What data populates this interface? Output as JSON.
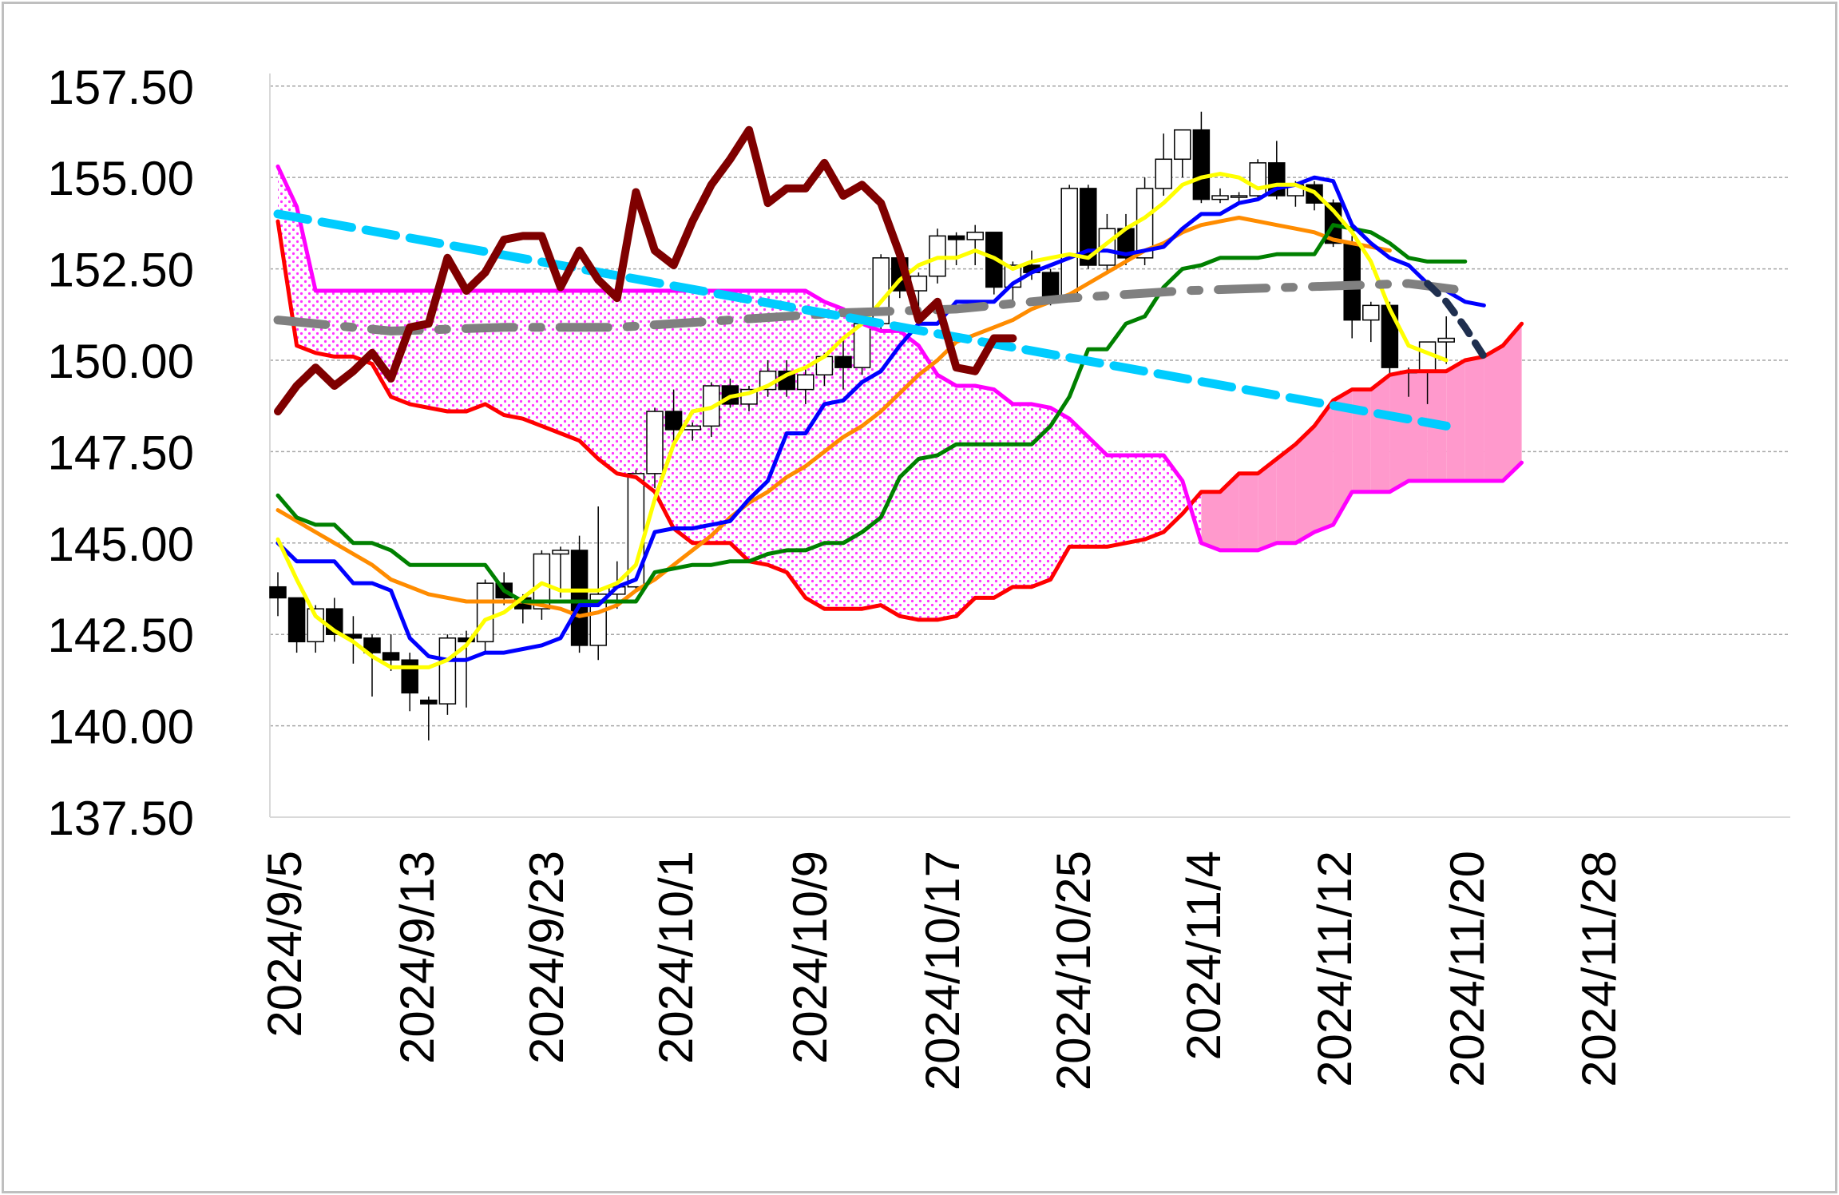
{
  "chart_data": {
    "type": "candlestick-ichimoku",
    "y_ticks": [
      "157.50",
      "155.00",
      "152.50",
      "150.00",
      "147.50",
      "145.00",
      "142.50",
      "140.00",
      "137.50"
    ],
    "x_tick_labels": [
      "2024/9/5",
      "2024/9/13",
      "2024/9/23",
      "2024/10/1",
      "2024/10/9",
      "2024/10/17",
      "2024/10/25",
      "2024/11/4",
      "2024/11/12",
      "2024/11/20",
      "2024/11/28"
    ],
    "ylim": [
      137.5,
      158.5
    ],
    "grid": "horizontal-dashed",
    "colors": {
      "kumo_fill_upper": "#ff33ff",
      "kumo_fill_solid": "#ff99cc",
      "senkou_a": "#ff0000",
      "senkou_b": "#ff00ff",
      "chikou": "#7f0000",
      "tenkan": "#0000ff",
      "kijun": "#008000",
      "ma_fast": "#ffff00",
      "ma_slow": "#ff8c00",
      "trend_dashed_1": "#00ccff",
      "trend_dashed_2": "#808080",
      "trend_dashed_3": "#1f2f4f"
    },
    "candles": [
      [
        143.8,
        144.2,
        143.0,
        143.5
      ],
      [
        143.5,
        143.5,
        142.0,
        142.3
      ],
      [
        142.3,
        143.3,
        142.0,
        143.2
      ],
      [
        143.2,
        143.5,
        142.3,
        142.5
      ],
      [
        142.5,
        143.0,
        141.7,
        142.4
      ],
      [
        142.4,
        142.5,
        140.8,
        142.0
      ],
      [
        142.0,
        142.5,
        141.5,
        141.8
      ],
      [
        141.8,
        142.0,
        140.4,
        140.9
      ],
      [
        140.7,
        140.8,
        139.6,
        140.6
      ],
      [
        140.6,
        142.5,
        140.3,
        142.4
      ],
      [
        142.4,
        142.6,
        140.5,
        142.3
      ],
      [
        142.3,
        144.0,
        142.0,
        143.9
      ],
      [
        143.9,
        144.2,
        143.3,
        143.5
      ],
      [
        143.5,
        143.6,
        142.8,
        143.2
      ],
      [
        143.2,
        144.8,
        142.9,
        144.7
      ],
      [
        144.7,
        144.9,
        143.5,
        144.8
      ],
      [
        144.8,
        145.2,
        142.0,
        142.2
      ],
      [
        142.2,
        146.0,
        141.8,
        143.6
      ],
      [
        143.6,
        144.5,
        143.2,
        143.8
      ],
      [
        143.8,
        147.0,
        143.7,
        146.9
      ],
      [
        146.9,
        148.7,
        146.5,
        148.6
      ],
      [
        148.6,
        149.2,
        147.8,
        148.1
      ],
      [
        148.1,
        148.3,
        147.8,
        148.2
      ],
      [
        148.2,
        149.4,
        147.9,
        149.3
      ],
      [
        149.3,
        149.5,
        148.7,
        148.8
      ],
      [
        148.8,
        149.3,
        148.6,
        149.2
      ],
      [
        149.2,
        150.0,
        149.0,
        149.7
      ],
      [
        149.7,
        150.0,
        149.0,
        149.2
      ],
      [
        149.2,
        149.8,
        148.8,
        149.6
      ],
      [
        149.6,
        150.2,
        149.3,
        150.1
      ],
      [
        150.1,
        150.6,
        149.2,
        149.8
      ],
      [
        149.8,
        151.2,
        149.6,
        151.0
      ],
      [
        151.0,
        152.9,
        150.8,
        152.8
      ],
      [
        152.8,
        153.1,
        151.7,
        151.9
      ],
      [
        151.9,
        152.4,
        151.3,
        152.3
      ],
      [
        152.3,
        153.6,
        152.1,
        153.4
      ],
      [
        153.4,
        153.5,
        152.6,
        153.3
      ],
      [
        153.3,
        153.7,
        152.6,
        153.5
      ],
      [
        153.5,
        153.5,
        151.8,
        152.0
      ],
      [
        152.0,
        152.7,
        151.6,
        152.6
      ],
      [
        152.6,
        153.0,
        152.2,
        152.4
      ],
      [
        152.4,
        152.5,
        151.5,
        151.7
      ],
      [
        151.7,
        154.8,
        151.6,
        154.7
      ],
      [
        154.7,
        154.8,
        152.5,
        152.6
      ],
      [
        152.6,
        154.0,
        152.4,
        153.6
      ],
      [
        153.6,
        154.0,
        152.6,
        152.8
      ],
      [
        152.8,
        155.0,
        152.6,
        154.7
      ],
      [
        154.7,
        156.2,
        154.5,
        155.5
      ],
      [
        155.5,
        156.3,
        155.0,
        156.3
      ],
      [
        156.3,
        156.8,
        154.3,
        154.4
      ],
      [
        154.4,
        154.7,
        154.3,
        154.5
      ],
      [
        154.5,
        154.6,
        154.3,
        154.5
      ],
      [
        154.5,
        155.5,
        154.4,
        155.4
      ],
      [
        155.4,
        156.0,
        154.4,
        154.5
      ],
      [
        154.5,
        154.9,
        154.2,
        154.8
      ],
      [
        154.8,
        154.9,
        154.1,
        154.3
      ],
      [
        154.3,
        154.4,
        153.1,
        153.2
      ],
      [
        153.2,
        153.4,
        150.6,
        151.1
      ],
      [
        151.1,
        151.6,
        150.5,
        151.5
      ],
      [
        151.5,
        151.6,
        149.6,
        149.8
      ],
      [
        149.7,
        149.8,
        149.0,
        149.7
      ],
      [
        149.7,
        150.3,
        148.8,
        150.5
      ],
      [
        150.5,
        151.2,
        149.9,
        150.6
      ]
    ],
    "series": [
      {
        "key": "senkou_a",
        "values": [
          153.8,
          150.4,
          150.2,
          150.1,
          150.1,
          149.9,
          149.0,
          148.8,
          148.7,
          148.6,
          148.6,
          148.8,
          148.5,
          148.4,
          148.2,
          148.0,
          147.8,
          147.3,
          146.9,
          146.8,
          146.4,
          145.4,
          145.0,
          145.0,
          145.0,
          144.5,
          144.4,
          144.2,
          143.5,
          143.2,
          143.2,
          143.2,
          143.3,
          143.0,
          142.9,
          142.9,
          143.0,
          143.5,
          143.5,
          143.8,
          143.8,
          144.0,
          144.9,
          144.9,
          144.9,
          145.0,
          145.1,
          145.3,
          145.8,
          146.4,
          146.4,
          146.9,
          146.9,
          147.3,
          147.7,
          148.2,
          148.9,
          149.2,
          149.2,
          149.6,
          149.7,
          149.7,
          149.7,
          150.0,
          150.1,
          150.4,
          151.0
        ]
      },
      {
        "key": "senkou_b",
        "values": [
          155.3,
          154.2,
          151.9,
          151.9,
          151.9,
          151.9,
          151.9,
          151.9,
          151.9,
          151.9,
          151.9,
          151.9,
          151.9,
          151.9,
          151.9,
          151.9,
          151.9,
          151.9,
          151.9,
          151.9,
          151.9,
          151.9,
          151.9,
          151.9,
          151.9,
          151.9,
          151.9,
          151.9,
          151.9,
          151.6,
          151.4,
          151.0,
          150.8,
          150.8,
          150.4,
          149.6,
          149.3,
          149.3,
          149.2,
          148.8,
          148.8,
          148.7,
          148.4,
          147.9,
          147.4,
          147.4,
          147.4,
          147.4,
          146.7,
          145.0,
          144.8,
          144.8,
          144.8,
          145.0,
          145.0,
          145.3,
          145.5,
          146.4,
          146.4,
          146.4,
          146.7,
          146.7,
          146.7,
          146.7,
          146.7,
          146.7,
          147.2
        ]
      },
      {
        "key": "chikou",
        "values": [
          148.6,
          149.3,
          149.8,
          149.3,
          149.7,
          150.2,
          149.5,
          150.9,
          151.0,
          152.8,
          151.9,
          152.4,
          153.3,
          153.4,
          153.4,
          152.0,
          153.0,
          152.2,
          151.7,
          154.6,
          153.0,
          152.6,
          153.8,
          154.8,
          155.5,
          156.3,
          154.3,
          154.7,
          154.7,
          155.4,
          154.5,
          154.8,
          154.3,
          152.9,
          151.1,
          151.6,
          149.8,
          149.7,
          150.6,
          150.6
        ]
      },
      {
        "key": "tenkan",
        "values": [
          145.0,
          144.5,
          144.5,
          144.5,
          143.9,
          143.9,
          143.7,
          142.4,
          141.9,
          141.8,
          141.8,
          142.0,
          142.0,
          142.1,
          142.2,
          142.4,
          143.3,
          143.3,
          143.8,
          144.0,
          145.3,
          145.4,
          145.4,
          145.5,
          145.6,
          146.2,
          146.7,
          148.0,
          148.0,
          148.8,
          148.9,
          149.4,
          149.7,
          150.4,
          151.0,
          151.0,
          151.6,
          151.6,
          151.6,
          152.1,
          152.4,
          152.6,
          152.8,
          153.0,
          153.0,
          152.9,
          153.0,
          153.1,
          153.6,
          154.0,
          154.0,
          154.3,
          154.4,
          154.7,
          154.8,
          155.0,
          154.9,
          153.7,
          153.2,
          152.8,
          152.6,
          152.1,
          151.9,
          151.6,
          151.5
        ]
      },
      {
        "key": "kijun",
        "values": [
          146.3,
          145.7,
          145.5,
          145.5,
          145.0,
          145.0,
          144.8,
          144.4,
          144.4,
          144.4,
          144.4,
          144.4,
          143.7,
          143.4,
          143.4,
          143.4,
          143.4,
          143.4,
          143.4,
          143.4,
          144.2,
          144.3,
          144.4,
          144.4,
          144.5,
          144.5,
          144.7,
          144.8,
          144.8,
          145.0,
          145.0,
          145.3,
          145.7,
          146.8,
          147.3,
          147.4,
          147.7,
          147.7,
          147.7,
          147.7,
          147.7,
          148.2,
          149.0,
          150.3,
          150.3,
          151.0,
          151.2,
          152.0,
          152.5,
          152.6,
          152.8,
          152.8,
          152.8,
          152.9,
          152.9,
          152.9,
          153.7,
          153.6,
          153.5,
          153.2,
          152.8,
          152.7,
          152.7,
          152.7
        ]
      },
      {
        "key": "ma_fast",
        "values": [
          145.1,
          144.0,
          143.0,
          142.6,
          142.3,
          141.9,
          141.6,
          141.6,
          141.6,
          141.8,
          142.2,
          142.9,
          143.1,
          143.5,
          143.9,
          143.7,
          143.7,
          143.7,
          143.9,
          144.4,
          146.2,
          147.7,
          148.6,
          148.7,
          149.0,
          149.1,
          149.3,
          149.6,
          149.8,
          150.1,
          150.6,
          151.0,
          151.6,
          152.2,
          152.6,
          152.8,
          152.8,
          153.0,
          152.8,
          152.5,
          152.7,
          152.8,
          152.9,
          152.8,
          153.2,
          153.6,
          153.9,
          154.3,
          154.8,
          155.0,
          155.1,
          155.0,
          154.7,
          154.8,
          154.8,
          154.6,
          154.1,
          153.5,
          152.7,
          151.4,
          150.4,
          150.2,
          150.0
        ]
      },
      {
        "key": "ma_slow",
        "values": [
          145.9,
          145.6,
          145.3,
          145.0,
          144.7,
          144.4,
          144.0,
          143.8,
          143.6,
          143.5,
          143.4,
          143.4,
          143.4,
          143.4,
          143.3,
          143.2,
          143.0,
          143.1,
          143.3,
          143.7,
          144.0,
          144.4,
          144.8,
          145.2,
          145.7,
          146.1,
          146.4,
          146.8,
          147.1,
          147.5,
          147.9,
          148.2,
          148.6,
          149.1,
          149.6,
          150.0,
          150.5,
          150.7,
          150.9,
          151.1,
          151.4,
          151.6,
          151.8,
          152.1,
          152.4,
          152.7,
          153.0,
          153.2,
          153.5,
          153.7,
          153.8,
          153.9,
          153.8,
          153.7,
          153.6,
          153.5,
          153.3,
          153.2,
          153.1,
          153.0
        ]
      },
      {
        "key": "trend_dashed_1",
        "points": [
          [
            0,
            154.0
          ],
          [
            62,
            148.2
          ]
        ]
      },
      {
        "key": "trend_dashed_2",
        "points": [
          [
            0,
            151.1
          ],
          [
            6,
            150.8
          ],
          [
            12,
            150.9
          ],
          [
            18,
            150.9
          ],
          [
            24,
            151.1
          ],
          [
            30,
            151.3
          ],
          [
            36,
            151.4
          ],
          [
            42,
            151.7
          ],
          [
            48,
            151.9
          ],
          [
            54,
            152.0
          ],
          [
            60,
            152.1
          ],
          [
            63,
            151.9
          ]
        ]
      },
      {
        "key": "trend_dashed_3",
        "points": [
          [
            61,
            152.1
          ],
          [
            62,
            151.6
          ],
          [
            63,
            150.9
          ],
          [
            64,
            150.1
          ]
        ]
      }
    ]
  }
}
